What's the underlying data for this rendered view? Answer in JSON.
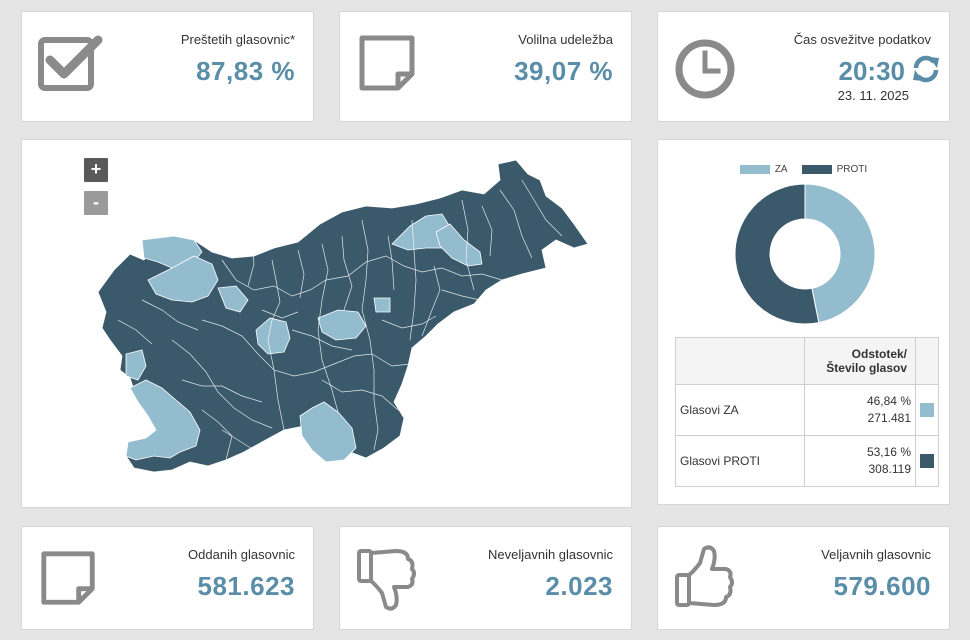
{
  "stats_top": {
    "counted": {
      "label": "Preštetih glasovnic*",
      "value": "87,83 %"
    },
    "turnout": {
      "label": "Volilna udeležba",
      "value": "39,07 %"
    },
    "refresh": {
      "label": "Čas osvežitve podatkov",
      "time": "20:30",
      "date": "23. 11. 2025"
    }
  },
  "map": {
    "zoom_in_label": "+",
    "zoom_out_label": "-",
    "colors": {
      "za": "#93bccf",
      "proti": "#3a5a6b",
      "border": "#ffffff"
    }
  },
  "chart_data": {
    "type": "pie",
    "variant": "donut",
    "legend_position": "top",
    "categories": [
      "ZA",
      "PROTI"
    ],
    "values": [
      46.84,
      53.16
    ],
    "colors": [
      "#93bccf",
      "#3a5a6b"
    ]
  },
  "results_table": {
    "header_col2": "Odstotek/ Število glasov",
    "rows": [
      {
        "label": "Glasovi ZA",
        "percent": "46,84 %",
        "count": "271.481",
        "color": "#93bccf"
      },
      {
        "label": "Glasovi PROTI",
        "percent": "53,16 %",
        "count": "308.119",
        "color": "#3a5a6b"
      }
    ]
  },
  "stats_bottom": {
    "cast": {
      "label": "Oddanih glasovnic",
      "value": "581.623"
    },
    "invalid": {
      "label": "Neveljavnih glasovnic",
      "value": "2.023"
    },
    "valid": {
      "label": "Veljavnih glasovnic",
      "value": "579.600"
    }
  },
  "icons": [
    "checkbox-icon",
    "note-icon",
    "clock-icon",
    "refresh-icon",
    "thumbs-down-icon",
    "thumbs-up-icon"
  ]
}
